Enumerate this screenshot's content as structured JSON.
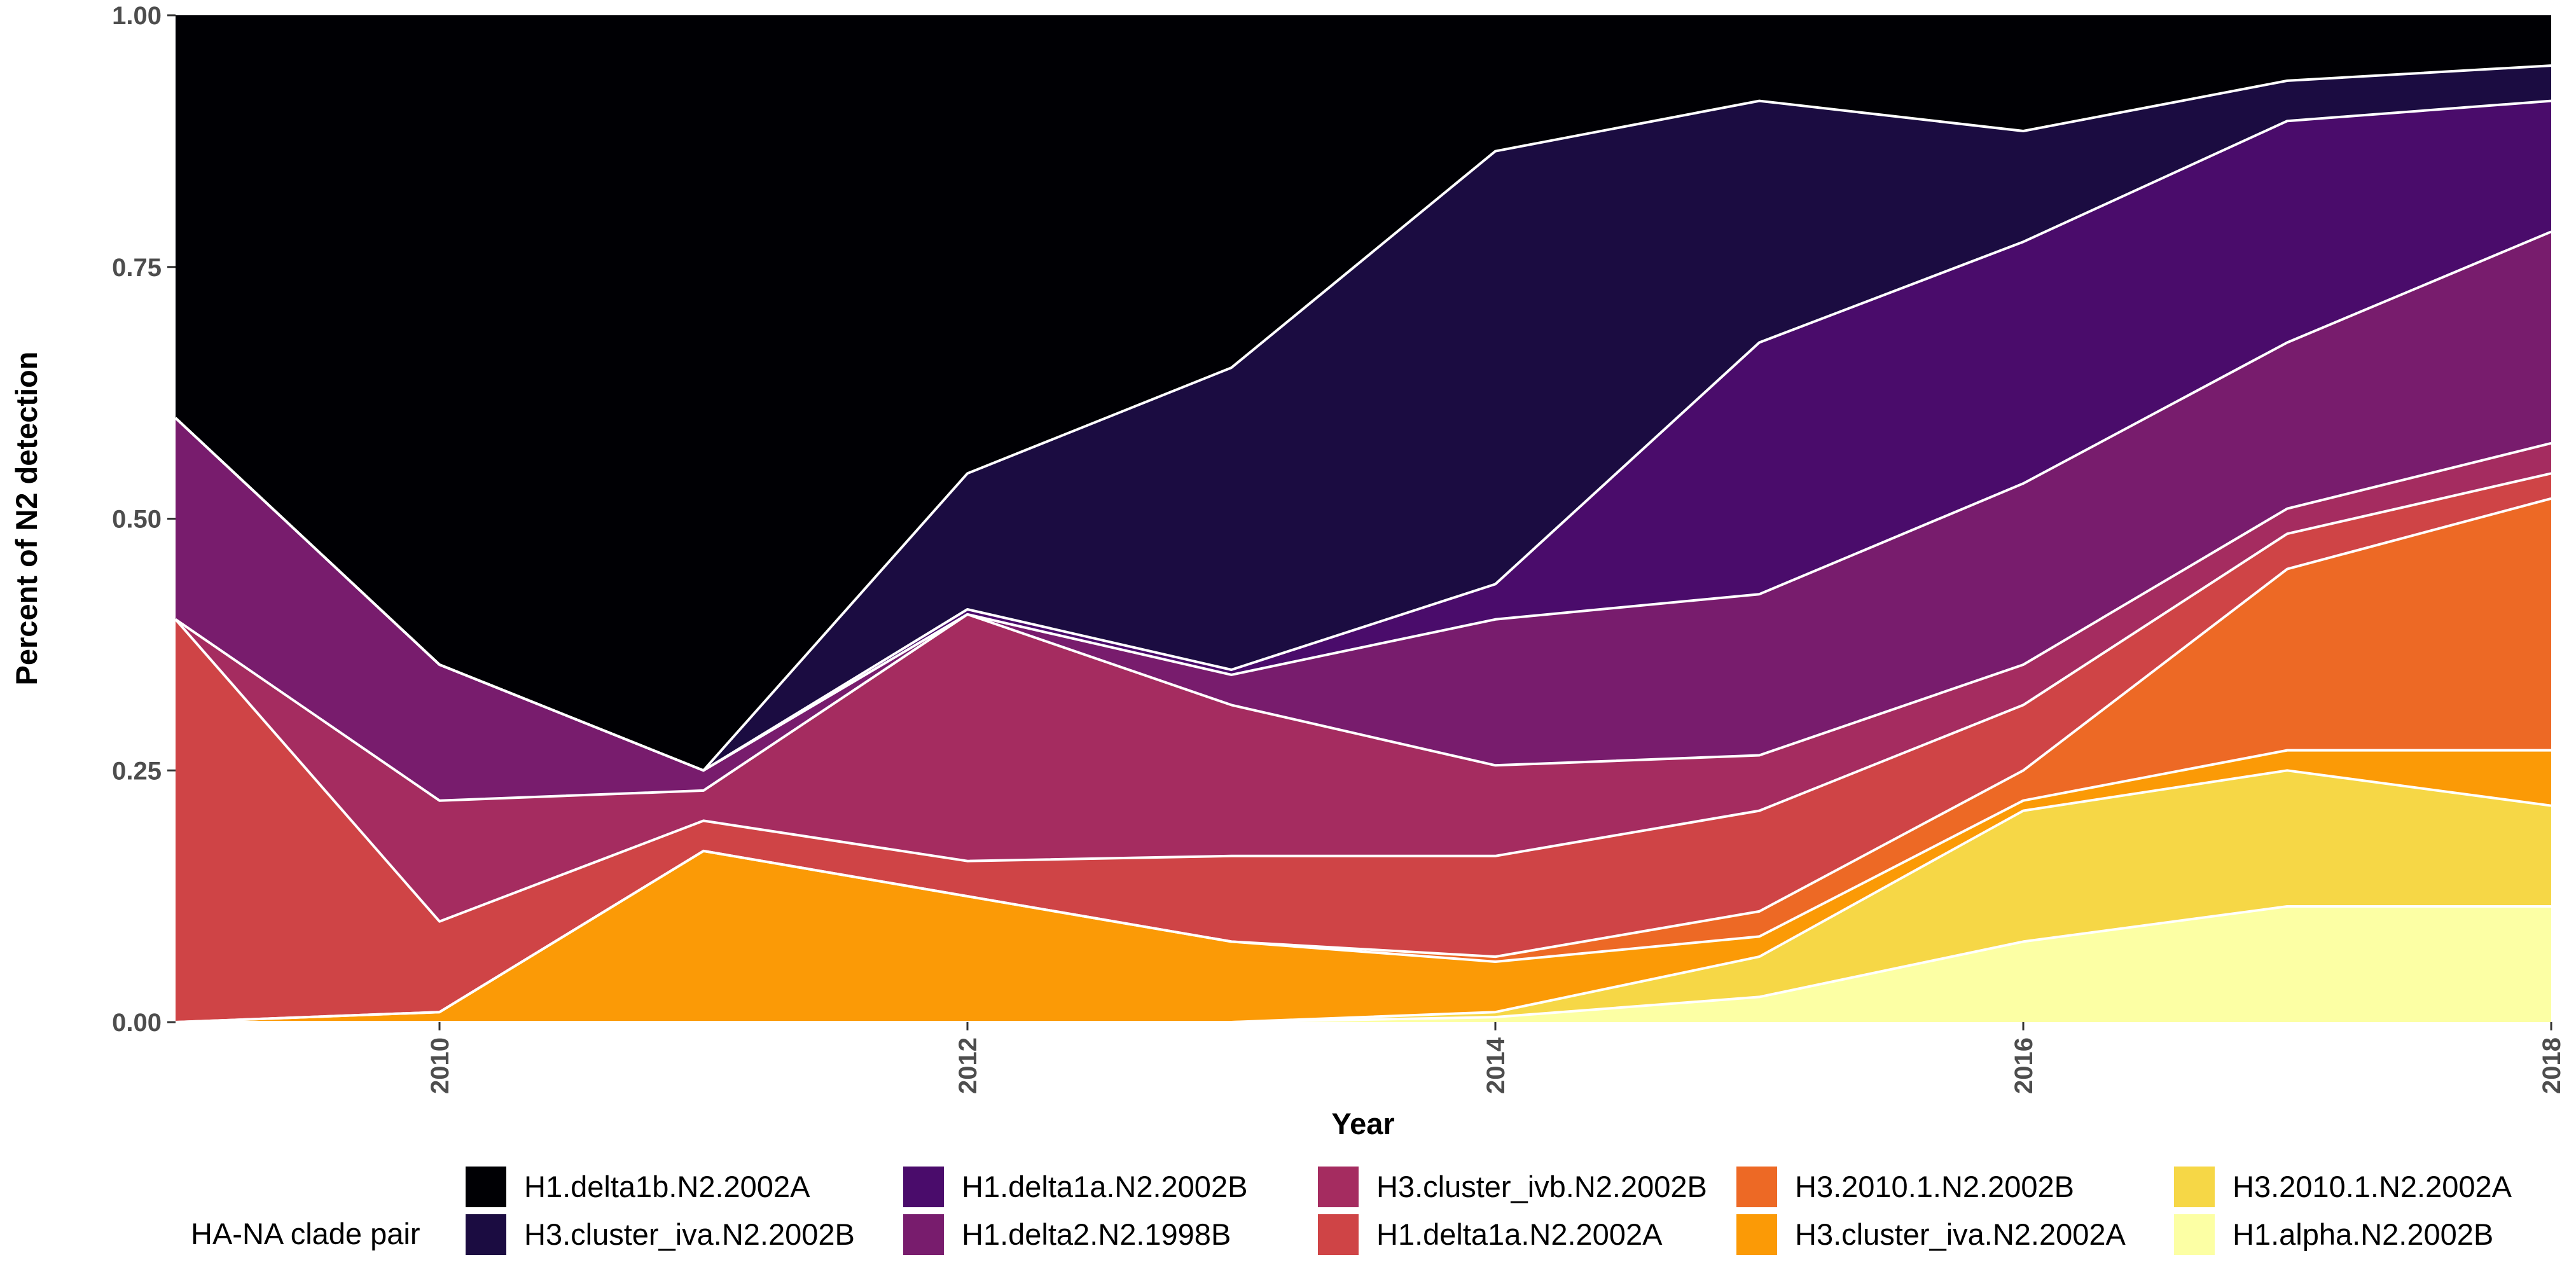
{
  "chart_data": {
    "type": "area",
    "stacked": true,
    "xlabel": "Year",
    "ylabel": "Percent of N2 detection",
    "xlim": [
      2009,
      2018
    ],
    "ylim": [
      0,
      1
    ],
    "x": [
      2009,
      2010,
      2011,
      2012,
      2013,
      2014,
      2015,
      2016,
      2017,
      2018
    ],
    "x_ticks": [
      2010,
      2012,
      2014,
      2016,
      2018
    ],
    "y_ticks": [
      0,
      0.25,
      0.5,
      0.75,
      1
    ],
    "y_tick_labels": [
      "0.00",
      "0.25",
      "0.50",
      "0.75",
      "1.00"
    ],
    "grid": false,
    "legend": {
      "title": "HA-NA clade pair",
      "position": "bottom",
      "order": [
        "H1.delta1b.N2.2002A",
        "H3.cluster_iva.N2.2002B",
        "H1.delta1a.N2.2002B",
        "H1.delta2.N2.1998B",
        "H3.cluster_ivb.N2.2002B",
        "H1.delta1a.N2.2002A",
        "H3.2010.1.N2.2002B",
        "H3.cluster_iva.N2.2002A",
        "H3.2010.1.N2.2002A",
        "H1.alpha.N2.2002B"
      ]
    },
    "series": [
      {
        "name": "H1.alpha.N2.2002B",
        "color": "#FCFFA4",
        "values": [
          0,
          0,
          0,
          0,
          0,
          0.005,
          0.025,
          0.08,
          0.115,
          0.115
        ]
      },
      {
        "name": "H3.2010.1.N2.2002A",
        "color": "#F6D746",
        "values": [
          0,
          0,
          0,
          0,
          0,
          0.005,
          0.04,
          0.13,
          0.135,
          0.1
        ]
      },
      {
        "name": "H3.cluster_iva.N2.2002A",
        "color": "#FB9A06",
        "values": [
          0,
          0.01,
          0.17,
          0.125,
          0.08,
          0.05,
          0.02,
          0.01,
          0.02,
          0.055
        ]
      },
      {
        "name": "H3.2010.1.N2.2002B",
        "color": "#ED6925",
        "values": [
          0,
          0,
          0,
          0,
          0,
          0.005,
          0.025,
          0.03,
          0.18,
          0.25
        ]
      },
      {
        "name": "H1.delta1a.N2.2002A",
        "color": "#CF4446",
        "values": [
          0.4,
          0.09,
          0.03,
          0.035,
          0.085,
          0.1,
          0.1,
          0.065,
          0.035,
          0.025
        ]
      },
      {
        "name": "H3.cluster_ivb.N2.2002B",
        "color": "#A52C60",
        "values": [
          0,
          0.12,
          0.03,
          0.245,
          0.15,
          0.09,
          0.055,
          0.04,
          0.025,
          0.03
        ]
      },
      {
        "name": "H1.delta2.N2.1998B",
        "color": "#781C6D",
        "values": [
          0.2,
          0.135,
          0.02,
          0.0,
          0.03,
          0.145,
          0.16,
          0.18,
          0.165,
          0.21
        ]
      },
      {
        "name": "H1.delta1a.N2.2002B",
        "color": "#4A0C6B",
        "values": [
          0,
          0,
          0,
          0.005,
          0.005,
          0.035,
          0.25,
          0.24,
          0.22,
          0.13
        ]
      },
      {
        "name": "H3.cluster_iva.N2.2002B",
        "color": "#1B0C41",
        "values": [
          0,
          0,
          0,
          0.135,
          0.3,
          0.43,
          0.24,
          0.11,
          0.04,
          0.035
        ]
      },
      {
        "name": "H1.delta1b.N2.2002A",
        "color": "#000004",
        "values": [
          0.4,
          0.645,
          0.75,
          0.455,
          0.35,
          0.135,
          0.085,
          0.115,
          0.065,
          0.05
        ]
      }
    ]
  }
}
